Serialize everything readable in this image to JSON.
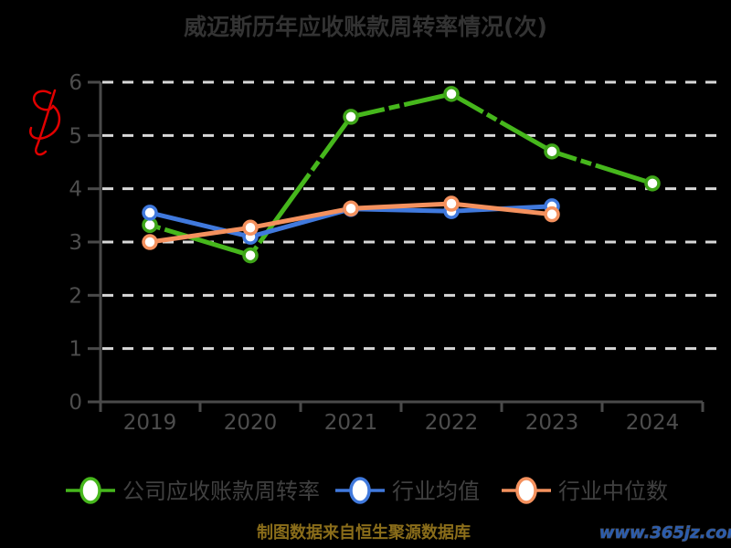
{
  "title": "威迈斯历年应收账款周转率情况(次)",
  "footer": {
    "source_note": "制图数据来自恒生聚源数据库",
    "watermark": "www.365jz.com"
  },
  "colors": {
    "background": "#000000",
    "title": "#333333",
    "axis": "#4a4a4a",
    "tick_label": "#4d4d4d",
    "gridline": "#d8d8d8",
    "legend_label": "#404040",
    "source_note": "#8a6d1a",
    "watermark": "#2b5cad",
    "signature": "#e10000"
  },
  "chart_data": {
    "type": "line",
    "title": "威迈斯历年应收账款周转率情况(次)",
    "categories": [
      "2019",
      "2020",
      "2021",
      "2022",
      "2023",
      "2024"
    ],
    "series": [
      {
        "name": "公司应收账款周转率",
        "id": "company-receivables-turnover",
        "color": "#46b71c",
        "marker_edge": "#3ea518",
        "dashed": true,
        "values": [
          3.32,
          2.75,
          5.35,
          5.78,
          4.7,
          4.1
        ]
      },
      {
        "name": "行业均值",
        "id": "industry-mean",
        "color": "#4079dd",
        "marker_edge": "#4079dd",
        "dashed": false,
        "values": [
          3.55,
          3.1,
          3.62,
          3.58,
          3.67,
          null
        ]
      },
      {
        "name": "行业中位数",
        "id": "industry-median",
        "color": "#f4915e",
        "marker_edge": "#f4915e",
        "dashed": false,
        "values": [
          3.0,
          3.27,
          3.63,
          3.72,
          3.52,
          null
        ]
      }
    ],
    "y_ticks": [
      0,
      1,
      2,
      3,
      4,
      5,
      6
    ],
    "ylim": [
      0,
      6
    ],
    "grid": "horizontal-dashed-white",
    "legend_position": "bottom",
    "marker": "circle-white-fill"
  }
}
